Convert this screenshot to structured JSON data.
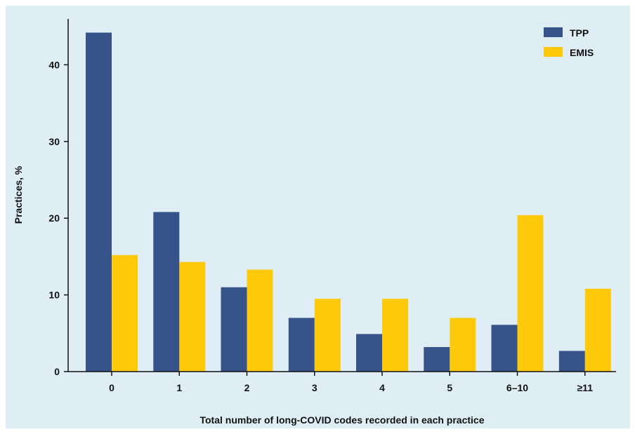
{
  "chart_data": {
    "type": "bar",
    "categories": [
      "0",
      "1",
      "2",
      "3",
      "4",
      "5",
      "6–10",
      "≥11"
    ],
    "series": [
      {
        "name": "TPP",
        "color": "#36538a",
        "values": [
          44.2,
          20.8,
          11.0,
          7.0,
          4.9,
          3.2,
          6.1,
          2.7
        ]
      },
      {
        "name": "EMIS",
        "color": "#ffc90b",
        "values": [
          15.2,
          14.3,
          13.3,
          9.5,
          9.5,
          7.0,
          20.4,
          10.8
        ]
      }
    ],
    "xlabel": "Total number of long-COVID codes recorded in each practice",
    "ylabel": "Practices, %",
    "ylim": [
      0,
      45
    ],
    "yticks": [
      0,
      10,
      20,
      30,
      40
    ],
    "grid": false,
    "legend_position": "top-right"
  },
  "colors": {
    "background": "#dfeef5",
    "axis": "#111111"
  }
}
